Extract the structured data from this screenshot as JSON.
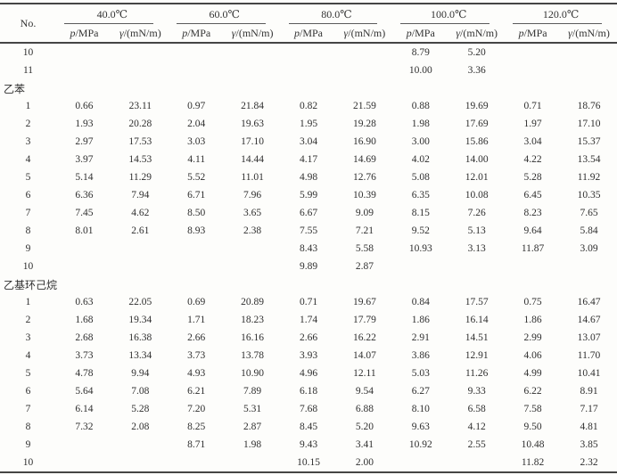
{
  "table": {
    "no_label": "No.",
    "temp_headers": [
      "40.0℃",
      "60.0℃",
      "80.0℃",
      "100.0℃",
      "120.0℃"
    ],
    "sub_headers": {
      "pressure_sym": "p",
      "pressure_rest": "/MPa",
      "tension_sym": "γ",
      "tension_rest": "/(mN/m)"
    },
    "rows": [
      {
        "type": "data",
        "no": "10",
        "values": [
          "",
          "",
          "",
          "",
          "",
          "",
          "8.79",
          "5.20",
          "",
          ""
        ]
      },
      {
        "type": "data",
        "no": "11",
        "values": [
          "",
          "",
          "",
          "",
          "",
          "",
          "10.00",
          "3.36",
          "",
          ""
        ]
      },
      {
        "type": "section",
        "label": "乙苯"
      },
      {
        "type": "data",
        "no": "1",
        "values": [
          "0.66",
          "23.11",
          "0.97",
          "21.84",
          "0.82",
          "21.59",
          "0.88",
          "19.69",
          "0.71",
          "18.76"
        ]
      },
      {
        "type": "data",
        "no": "2",
        "values": [
          "1.93",
          "20.28",
          "2.04",
          "19.63",
          "1.95",
          "19.28",
          "1.98",
          "17.69",
          "1.97",
          "17.10"
        ]
      },
      {
        "type": "data",
        "no": "3",
        "values": [
          "2.97",
          "17.53",
          "3.03",
          "17.10",
          "3.04",
          "16.90",
          "3.00",
          "15.86",
          "3.04",
          "15.37"
        ]
      },
      {
        "type": "data",
        "no": "4",
        "values": [
          "3.97",
          "14.53",
          "4.11",
          "14.44",
          "4.17",
          "14.69",
          "4.02",
          "14.00",
          "4.22",
          "13.54"
        ]
      },
      {
        "type": "data",
        "no": "5",
        "values": [
          "5.14",
          "11.29",
          "5.52",
          "11.01",
          "4.98",
          "12.76",
          "5.08",
          "12.01",
          "5.28",
          "11.92"
        ]
      },
      {
        "type": "data",
        "no": "6",
        "values": [
          "6.36",
          "7.94",
          "6.71",
          "7.96",
          "5.99",
          "10.39",
          "6.35",
          "10.08",
          "6.45",
          "10.35"
        ]
      },
      {
        "type": "data",
        "no": "7",
        "values": [
          "7.45",
          "4.62",
          "8.50",
          "3.65",
          "6.67",
          "9.09",
          "8.15",
          "7.26",
          "8.23",
          "7.65"
        ]
      },
      {
        "type": "data",
        "no": "8",
        "values": [
          "8.01",
          "2.61",
          "8.93",
          "2.38",
          "7.55",
          "7.21",
          "9.52",
          "5.13",
          "9.64",
          "5.84"
        ]
      },
      {
        "type": "data",
        "no": "9",
        "values": [
          "",
          "",
          "",
          "",
          "8.43",
          "5.58",
          "10.93",
          "3.13",
          "11.87",
          "3.09"
        ]
      },
      {
        "type": "data",
        "no": "10",
        "values": [
          "",
          "",
          "",
          "",
          "9.89",
          "2.87",
          "",
          "",
          "",
          ""
        ]
      },
      {
        "type": "section",
        "label": "乙基环己烷"
      },
      {
        "type": "data",
        "no": "1",
        "values": [
          "0.63",
          "22.05",
          "0.69",
          "20.89",
          "0.71",
          "19.67",
          "0.84",
          "17.57",
          "0.75",
          "16.47"
        ]
      },
      {
        "type": "data",
        "no": "2",
        "values": [
          "1.68",
          "19.34",
          "1.71",
          "18.23",
          "1.74",
          "17.79",
          "1.86",
          "16.14",
          "1.86",
          "14.67"
        ]
      },
      {
        "type": "data",
        "no": "3",
        "values": [
          "2.68",
          "16.38",
          "2.66",
          "16.16",
          "2.66",
          "16.22",
          "2.91",
          "14.51",
          "2.99",
          "13.07"
        ]
      },
      {
        "type": "data",
        "no": "4",
        "values": [
          "3.73",
          "13.34",
          "3.73",
          "13.78",
          "3.93",
          "14.07",
          "3.86",
          "12.91",
          "4.06",
          "11.70"
        ]
      },
      {
        "type": "data",
        "no": "5",
        "values": [
          "4.78",
          "9.94",
          "4.93",
          "10.90",
          "4.96",
          "12.11",
          "5.03",
          "11.26",
          "4.99",
          "10.41"
        ]
      },
      {
        "type": "data",
        "no": "6",
        "values": [
          "5.64",
          "7.08",
          "6.21",
          "7.89",
          "6.18",
          "9.54",
          "6.27",
          "9.33",
          "6.22",
          "8.91"
        ]
      },
      {
        "type": "data",
        "no": "7",
        "values": [
          "6.14",
          "5.28",
          "7.20",
          "5.31",
          "7.68",
          "6.88",
          "8.10",
          "6.58",
          "7.58",
          "7.17"
        ]
      },
      {
        "type": "data",
        "no": "8",
        "values": [
          "7.32",
          "2.08",
          "8.25",
          "2.87",
          "8.45",
          "5.20",
          "9.63",
          "4.12",
          "9.50",
          "4.81"
        ]
      },
      {
        "type": "data",
        "no": "9",
        "values": [
          "",
          "",
          "8.71",
          "1.98",
          "9.43",
          "3.41",
          "10.92",
          "2.55",
          "10.48",
          "3.85"
        ]
      },
      {
        "type": "data",
        "no": "10",
        "values": [
          "",
          "",
          "",
          "",
          "10.15",
          "2.00",
          "",
          "",
          "11.82",
          "2.32"
        ]
      }
    ]
  },
  "colors": {
    "rule_thick": "#454545",
    "rule_thin": "#5a5a5a",
    "text": "#2f2f2f",
    "background": "#fdfdfb"
  }
}
